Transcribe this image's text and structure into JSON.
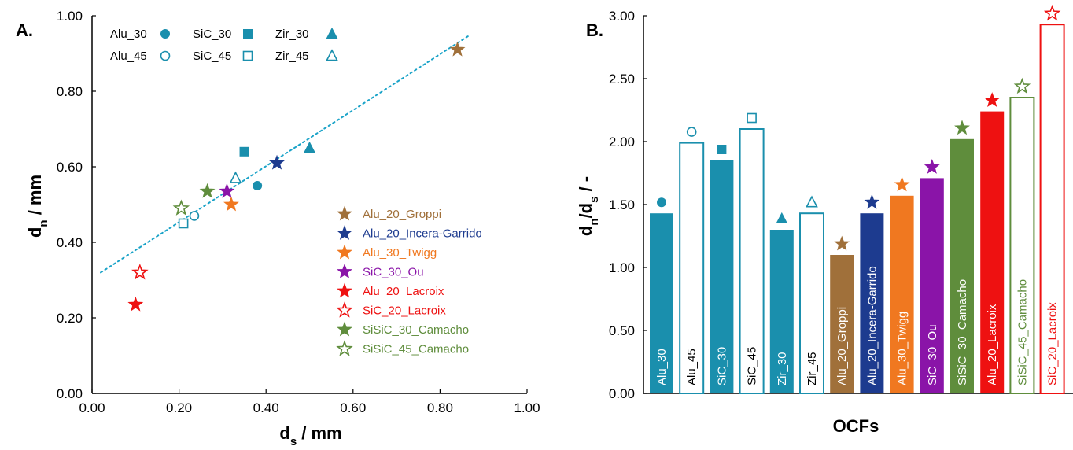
{
  "colors": {
    "teal": "#1a8fad",
    "brown": "#a0703a",
    "navy": "#1d3b8f",
    "orange": "#f07820",
    "purple": "#8a14a8",
    "red": "#ee1111",
    "green": "#5f8d3c",
    "trend": "#1aa3c8"
  },
  "panelA": {
    "label": "A.",
    "xlabel_main": "d",
    "xlabel_sub": "s",
    "xlabel_rest": " / mm",
    "ylabel_main": "d",
    "ylabel_sub": "n",
    "ylabel_rest": " / mm",
    "xticks": [
      "0.00",
      "0.20",
      "0.40",
      "0.60",
      "0.80",
      "1.00"
    ],
    "yticks": [
      "0.00",
      "0.20",
      "0.40",
      "0.60",
      "0.80",
      "1.00"
    ]
  },
  "panelB": {
    "label": "B.",
    "ylabel_main": "d",
    "ylabel_sub1": "n",
    "ylabel_mid": "/d",
    "ylabel_sub2": "s",
    "ylabel_rest": " / -",
    "xlabel": "OCFs",
    "yticks": [
      "0.00",
      "0.50",
      "1.00",
      "1.50",
      "2.00",
      "2.50",
      "3.00"
    ]
  },
  "chart_data": [
    {
      "type": "scatter",
      "xlim": [
        0,
        1
      ],
      "ylim": [
        0,
        1
      ],
      "grid": false,
      "legend_position": "top-left and bottom-right",
      "series": [
        {
          "name": "Alu_30",
          "marker": "circle-filled",
          "color": "teal",
          "x": [
            0.38
          ],
          "y": [
            0.55
          ]
        },
        {
          "name": "Alu_45",
          "marker": "circle-open",
          "color": "teal",
          "x": [
            0.235
          ],
          "y": [
            0.47
          ]
        },
        {
          "name": "SiC_30",
          "marker": "square-filled",
          "color": "teal",
          "x": [
            0.35
          ],
          "y": [
            0.64
          ]
        },
        {
          "name": "SiC_45",
          "marker": "square-open",
          "color": "teal",
          "x": [
            0.21
          ],
          "y": [
            0.45
          ]
        },
        {
          "name": "Zir_30",
          "marker": "triangle-filled",
          "color": "teal",
          "x": [
            0.5
          ],
          "y": [
            0.65
          ]
        },
        {
          "name": "Zir_45",
          "marker": "triangle-open",
          "color": "teal",
          "x": [
            0.33
          ],
          "y": [
            0.57
          ]
        },
        {
          "name": "Alu_20_Groppi",
          "marker": "star-filled",
          "color": "brown",
          "x": [
            0.84
          ],
          "y": [
            0.91
          ]
        },
        {
          "name": "Alu_20_Incera-Garrido",
          "marker": "star-filled",
          "color": "navy",
          "x": [
            0.425
          ],
          "y": [
            0.61
          ]
        },
        {
          "name": "Alu_30_Twigg",
          "marker": "star-filled",
          "color": "orange",
          "x": [
            0.32
          ],
          "y": [
            0.5
          ]
        },
        {
          "name": "SiC_30_Ou",
          "marker": "star-filled",
          "color": "purple",
          "x": [
            0.31
          ],
          "y": [
            0.535
          ]
        },
        {
          "name": "Alu_20_Lacroix",
          "marker": "star-filled",
          "color": "red",
          "x": [
            0.1
          ],
          "y": [
            0.235
          ]
        },
        {
          "name": "SiC_20_Lacroix",
          "marker": "star-open",
          "color": "red",
          "x": [
            0.11
          ],
          "y": [
            0.32
          ]
        },
        {
          "name": "SiSiC_30_Camacho",
          "marker": "star-filled",
          "color": "green",
          "x": [
            0.265
          ],
          "y": [
            0.535
          ]
        },
        {
          "name": "SiSiC_45_Camacho",
          "marker": "star-open",
          "color": "green",
          "x": [
            0.205
          ],
          "y": [
            0.49
          ]
        }
      ],
      "trendline": {
        "x": [
          0.02,
          0.87
        ],
        "y": [
          0.32,
          0.95
        ],
        "style": "dotted"
      },
      "legend_top": [
        {
          "label": "Alu_30",
          "marker": "circle-filled"
        },
        {
          "label": "SiC_30",
          "marker": "square-filled"
        },
        {
          "label": "Zir_30",
          "marker": "triangle-filled"
        },
        {
          "label": "Alu_45",
          "marker": "circle-open"
        },
        {
          "label": "SiC_45",
          "marker": "square-open"
        },
        {
          "label": "Zir_45",
          "marker": "triangle-open"
        }
      ],
      "legend_bottom": [
        {
          "label": "Alu_20_Groppi",
          "marker": "star-filled",
          "color": "brown"
        },
        {
          "label": "Alu_20_Incera-Garrido",
          "marker": "star-filled",
          "color": "navy"
        },
        {
          "label": "Alu_30_Twigg",
          "marker": "star-filled",
          "color": "orange"
        },
        {
          "label": "SiC_30_Ou",
          "marker": "star-filled",
          "color": "purple"
        },
        {
          "label": "Alu_20_Lacroix",
          "marker": "star-filled",
          "color": "red"
        },
        {
          "label": "SiC_20_Lacroix",
          "marker": "star-open",
          "color": "red"
        },
        {
          "label": "SiSiC_30_Camacho",
          "marker": "star-filled",
          "color": "green"
        },
        {
          "label": "SiSiC_45_Camacho",
          "marker": "star-open",
          "color": "green"
        }
      ]
    },
    {
      "type": "bar",
      "ylim": [
        0,
        3
      ],
      "grid": false,
      "categories": [
        "Alu_30",
        "Alu_45",
        "SiC_30",
        "SiC_45",
        "Zir_30",
        "Zir_45",
        "Alu_20_Groppi",
        "Alu_20_Incera-Garrido",
        "Alu_30_Twigg",
        "SiC_30_Ou",
        "SiSiC_30_Camacho",
        "Alu_20_Lacroix",
        "SiSiC_45_Camacho",
        "SiC_20_Lacroix"
      ],
      "values": [
        1.43,
        1.99,
        1.85,
        2.1,
        1.3,
        1.43,
        1.1,
        1.43,
        1.57,
        1.71,
        2.02,
        2.24,
        2.35,
        2.93
      ],
      "bars": [
        {
          "color": "teal",
          "filled": true,
          "marker": "circle-filled"
        },
        {
          "color": "teal",
          "filled": false,
          "marker": "circle-open"
        },
        {
          "color": "teal",
          "filled": true,
          "marker": "square-filled"
        },
        {
          "color": "teal",
          "filled": false,
          "marker": "square-open"
        },
        {
          "color": "teal",
          "filled": true,
          "marker": "triangle-filled"
        },
        {
          "color": "teal",
          "filled": false,
          "marker": "triangle-open"
        },
        {
          "color": "brown",
          "filled": true,
          "marker": "star-filled"
        },
        {
          "color": "navy",
          "filled": true,
          "marker": "star-filled"
        },
        {
          "color": "orange",
          "filled": true,
          "marker": "star-filled"
        },
        {
          "color": "purple",
          "filled": true,
          "marker": "star-filled"
        },
        {
          "color": "green",
          "filled": true,
          "marker": "star-filled"
        },
        {
          "color": "red",
          "filled": true,
          "marker": "star-filled"
        },
        {
          "color": "green",
          "filled": false,
          "marker": "star-open"
        },
        {
          "color": "red",
          "filled": false,
          "marker": "star-open"
        }
      ]
    }
  ]
}
